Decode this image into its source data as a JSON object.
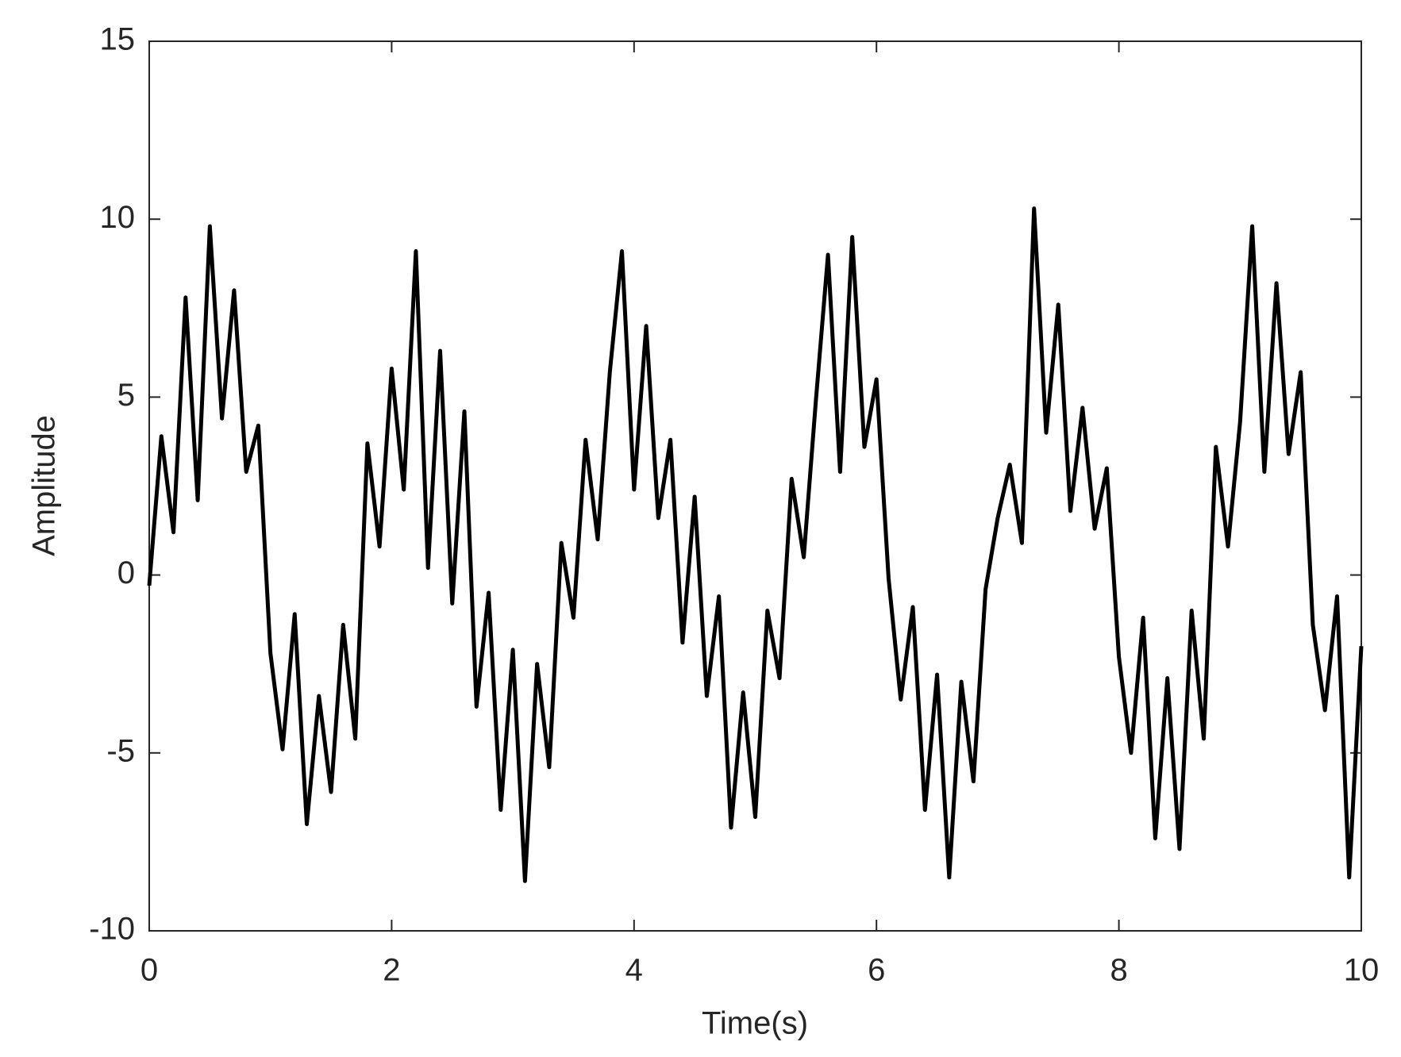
{
  "chart_data": {
    "type": "line",
    "xlabel": "Time(s)",
    "ylabel": "Amplitude",
    "x": [
      0,
      0.1,
      0.2,
      0.3,
      0.4,
      0.5,
      0.6,
      0.7,
      0.8,
      0.9,
      1,
      1.1,
      1.2,
      1.3,
      1.4,
      1.5,
      1.6,
      1.7,
      1.8,
      1.9,
      2,
      2.1,
      2.2,
      2.3,
      2.4,
      2.5,
      2.6,
      2.7,
      2.8,
      2.9,
      3,
      3.1,
      3.2,
      3.3,
      3.4,
      3.5,
      3.6,
      3.7,
      3.8,
      3.9,
      4,
      4.1,
      4.2,
      4.3,
      4.4,
      4.5,
      4.6,
      4.7,
      4.8,
      4.9,
      5,
      5.1,
      5.2,
      5.3,
      5.4,
      5.5,
      5.6,
      5.7,
      5.8,
      5.9,
      6,
      6.1,
      6.2,
      6.3,
      6.4,
      6.5,
      6.6,
      6.7,
      6.8,
      6.9,
      7,
      7.1,
      7.2,
      7.3,
      7.4,
      7.5,
      7.6,
      7.7,
      7.8,
      7.9,
      8,
      8.1,
      8.2,
      8.3,
      8.4,
      8.5,
      8.6,
      8.7,
      8.8,
      8.9,
      9,
      9.1,
      9.2,
      9.3,
      9.4,
      9.5,
      9.6,
      9.7,
      9.8,
      9.9,
      10
    ],
    "series": [
      {
        "color": "#000000",
        "values": [
          -0.3,
          3.9,
          1.2,
          7.8,
          2.1,
          9.8,
          4.4,
          8.0,
          2.9,
          4.2,
          -2.2,
          -4.9,
          -1.1,
          -7.0,
          -3.4,
          -6.1,
          -1.4,
          -4.6,
          3.7,
          0.8,
          5.8,
          2.4,
          9.1,
          0.2,
          6.3,
          -0.8,
          4.6,
          -3.7,
          -0.5,
          -6.6,
          -2.1,
          -8.6,
          -2.5,
          -5.4,
          0.9,
          -1.2,
          3.8,
          1.0,
          5.7,
          9.1,
          2.4,
          7.0,
          1.6,
          3.8,
          -1.9,
          2.2,
          -3.4,
          -0.6,
          -7.1,
          -3.3,
          -6.8,
          -1.0,
          -2.9,
          2.7,
          0.5,
          4.9,
          9.0,
          2.9,
          9.5,
          3.6,
          5.5,
          -0.1,
          -3.5,
          -0.9,
          -6.6,
          -2.8,
          -8.5,
          -3.0,
          -5.8,
          -0.4,
          1.6,
          3.1,
          0.9,
          10.3,
          4.0,
          7.6,
          1.8,
          4.7,
          1.3,
          3.0,
          -2.3,
          -5.0,
          -1.2,
          -7.4,
          -2.9,
          -7.7,
          -1.0,
          -4.6,
          3.6,
          0.8,
          4.3,
          9.8,
          2.9,
          8.2,
          3.4,
          5.7,
          -1.4,
          -3.8,
          -0.6,
          -8.5,
          -2.0
        ]
      }
    ],
    "xlim": [
      0,
      10
    ],
    "xticks": [
      0,
      2,
      4,
      6,
      8,
      10
    ],
    "ylim": [
      -10,
      15
    ],
    "yticks": [
      -10,
      -5,
      0,
      5,
      10,
      15
    ]
  }
}
